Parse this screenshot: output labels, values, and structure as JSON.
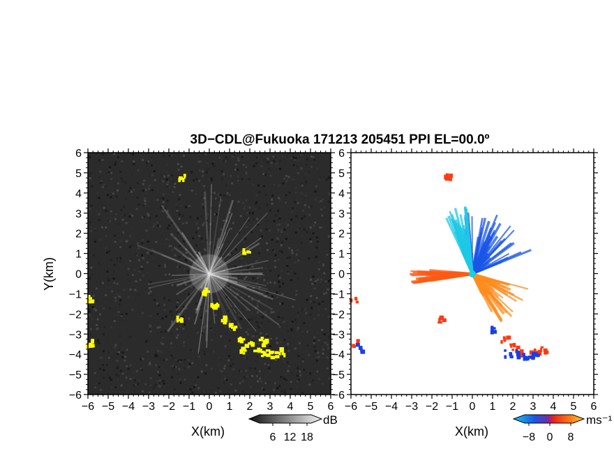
{
  "title": "3D−CDL@Fukuoka 171213 205451 PPI EL=00.0º",
  "chart_data": [
    {
      "type": "heatmap",
      "panel": "reflectivity",
      "xlabel": "X(km)",
      "ylabel": "Y(km)",
      "xlim": [
        -6,
        6
      ],
      "ylim": [
        -6,
        6
      ],
      "x_ticks": [
        "−6",
        "−5",
        "−4",
        "−3",
        "−2",
        "−1",
        "0",
        "1",
        "2",
        "3",
        "4",
        "5",
        "6"
      ],
      "y_ticks": [
        "−6",
        "−5",
        "−4",
        "−3",
        "−2",
        "−1",
        "0",
        "1",
        "2",
        "3",
        "4",
        "5",
        "6"
      ],
      "background_color": "#2a2a2a",
      "highlight_color": "#ffff00",
      "colorbar": {
        "ticks": [
          "6",
          "12",
          "18"
        ],
        "unit": "dB"
      },
      "features": [
        {
          "kind": "radial-streaks",
          "center": [
            0,
            0
          ],
          "max_range_km": 4.5
        },
        {
          "kind": "echo",
          "color": "#ffff00",
          "points": [
            [
              -0.3,
              -0.8
            ],
            [
              0.2,
              -1.5
            ],
            [
              0.7,
              -2.2
            ],
            [
              1.1,
              -2.6
            ],
            [
              1.5,
              -3.1
            ],
            [
              1.9,
              -3.5
            ],
            [
              2.3,
              -3.7
            ],
            [
              2.7,
              -3.9
            ],
            [
              3.1,
              -4.0
            ],
            [
              3.5,
              -3.8
            ]
          ]
        },
        {
          "kind": "echo",
          "color": "#ffff00",
          "points": [
            [
              -5.9,
              -1.2
            ],
            [
              -5.95,
              -3.4
            ],
            [
              -1.5,
              -2.1
            ],
            [
              -1.4,
              4.9
            ],
            [
              2.6,
              -3.3
            ],
            [
              1.6,
              -3.8
            ],
            [
              1.7,
              1.1
            ]
          ]
        }
      ]
    },
    {
      "type": "heatmap",
      "panel": "doppler-velocity",
      "xlabel": "X(km)",
      "xlim": [
        -6,
        6
      ],
      "ylim": [
        -6,
        6
      ],
      "x_ticks": [
        "−6",
        "−5",
        "−4",
        "−3",
        "−2",
        "−1",
        "0",
        "1",
        "2",
        "3",
        "4",
        "5",
        "6"
      ],
      "y_ticks": [
        "−6",
        "−5",
        "−4",
        "−3",
        "−2",
        "−1",
        "0",
        "1",
        "2",
        "3",
        "4",
        "5",
        "6"
      ],
      "colorbar": {
        "ticks": [
          "−8",
          "0",
          "8"
        ],
        "unit": "ms⁻¹",
        "min": -8,
        "max": 8
      },
      "features": [
        {
          "kind": "radial-fan",
          "velocity": -4,
          "color": "#1a55e6",
          "from_deg": 20,
          "to_deg": 100,
          "range_km": 3.3
        },
        {
          "kind": "radial-fan",
          "velocity": -6,
          "color": "#1ec8e6",
          "from_deg": 95,
          "to_deg": 115,
          "range_km": 3.4
        },
        {
          "kind": "radial-fan",
          "velocity": 4,
          "color": "#ff5a14",
          "from_deg": 175,
          "to_deg": 190,
          "range_km": 3.1
        },
        {
          "kind": "radial-fan",
          "velocity": 5,
          "color": "#ff8c1e",
          "from_deg": 295,
          "to_deg": 345,
          "range_km": 2.9
        },
        {
          "kind": "echo",
          "color": "#ff3a14",
          "points": [
            [
              1.5,
              -3.2
            ],
            [
              2.0,
              -3.6
            ],
            [
              2.4,
              -3.8
            ],
            [
              2.8,
              -3.9
            ],
            [
              3.2,
              -3.8
            ],
            [
              3.5,
              -3.7
            ],
            [
              -5.9,
              -1.3
            ],
            [
              -5.85,
              -3.4
            ],
            [
              -1.6,
              -2.2
            ],
            [
              -1.3,
              4.9
            ]
          ]
        },
        {
          "kind": "echo",
          "color": "#1a3ee6",
          "points": [
            [
              1.7,
              -3.9
            ],
            [
              2.1,
              -3.9
            ],
            [
              2.6,
              -4.1
            ],
            [
              3.0,
              -4.0
            ],
            [
              -5.7,
              -3.6
            ],
            [
              0.9,
              -2.7
            ]
          ]
        }
      ]
    }
  ]
}
